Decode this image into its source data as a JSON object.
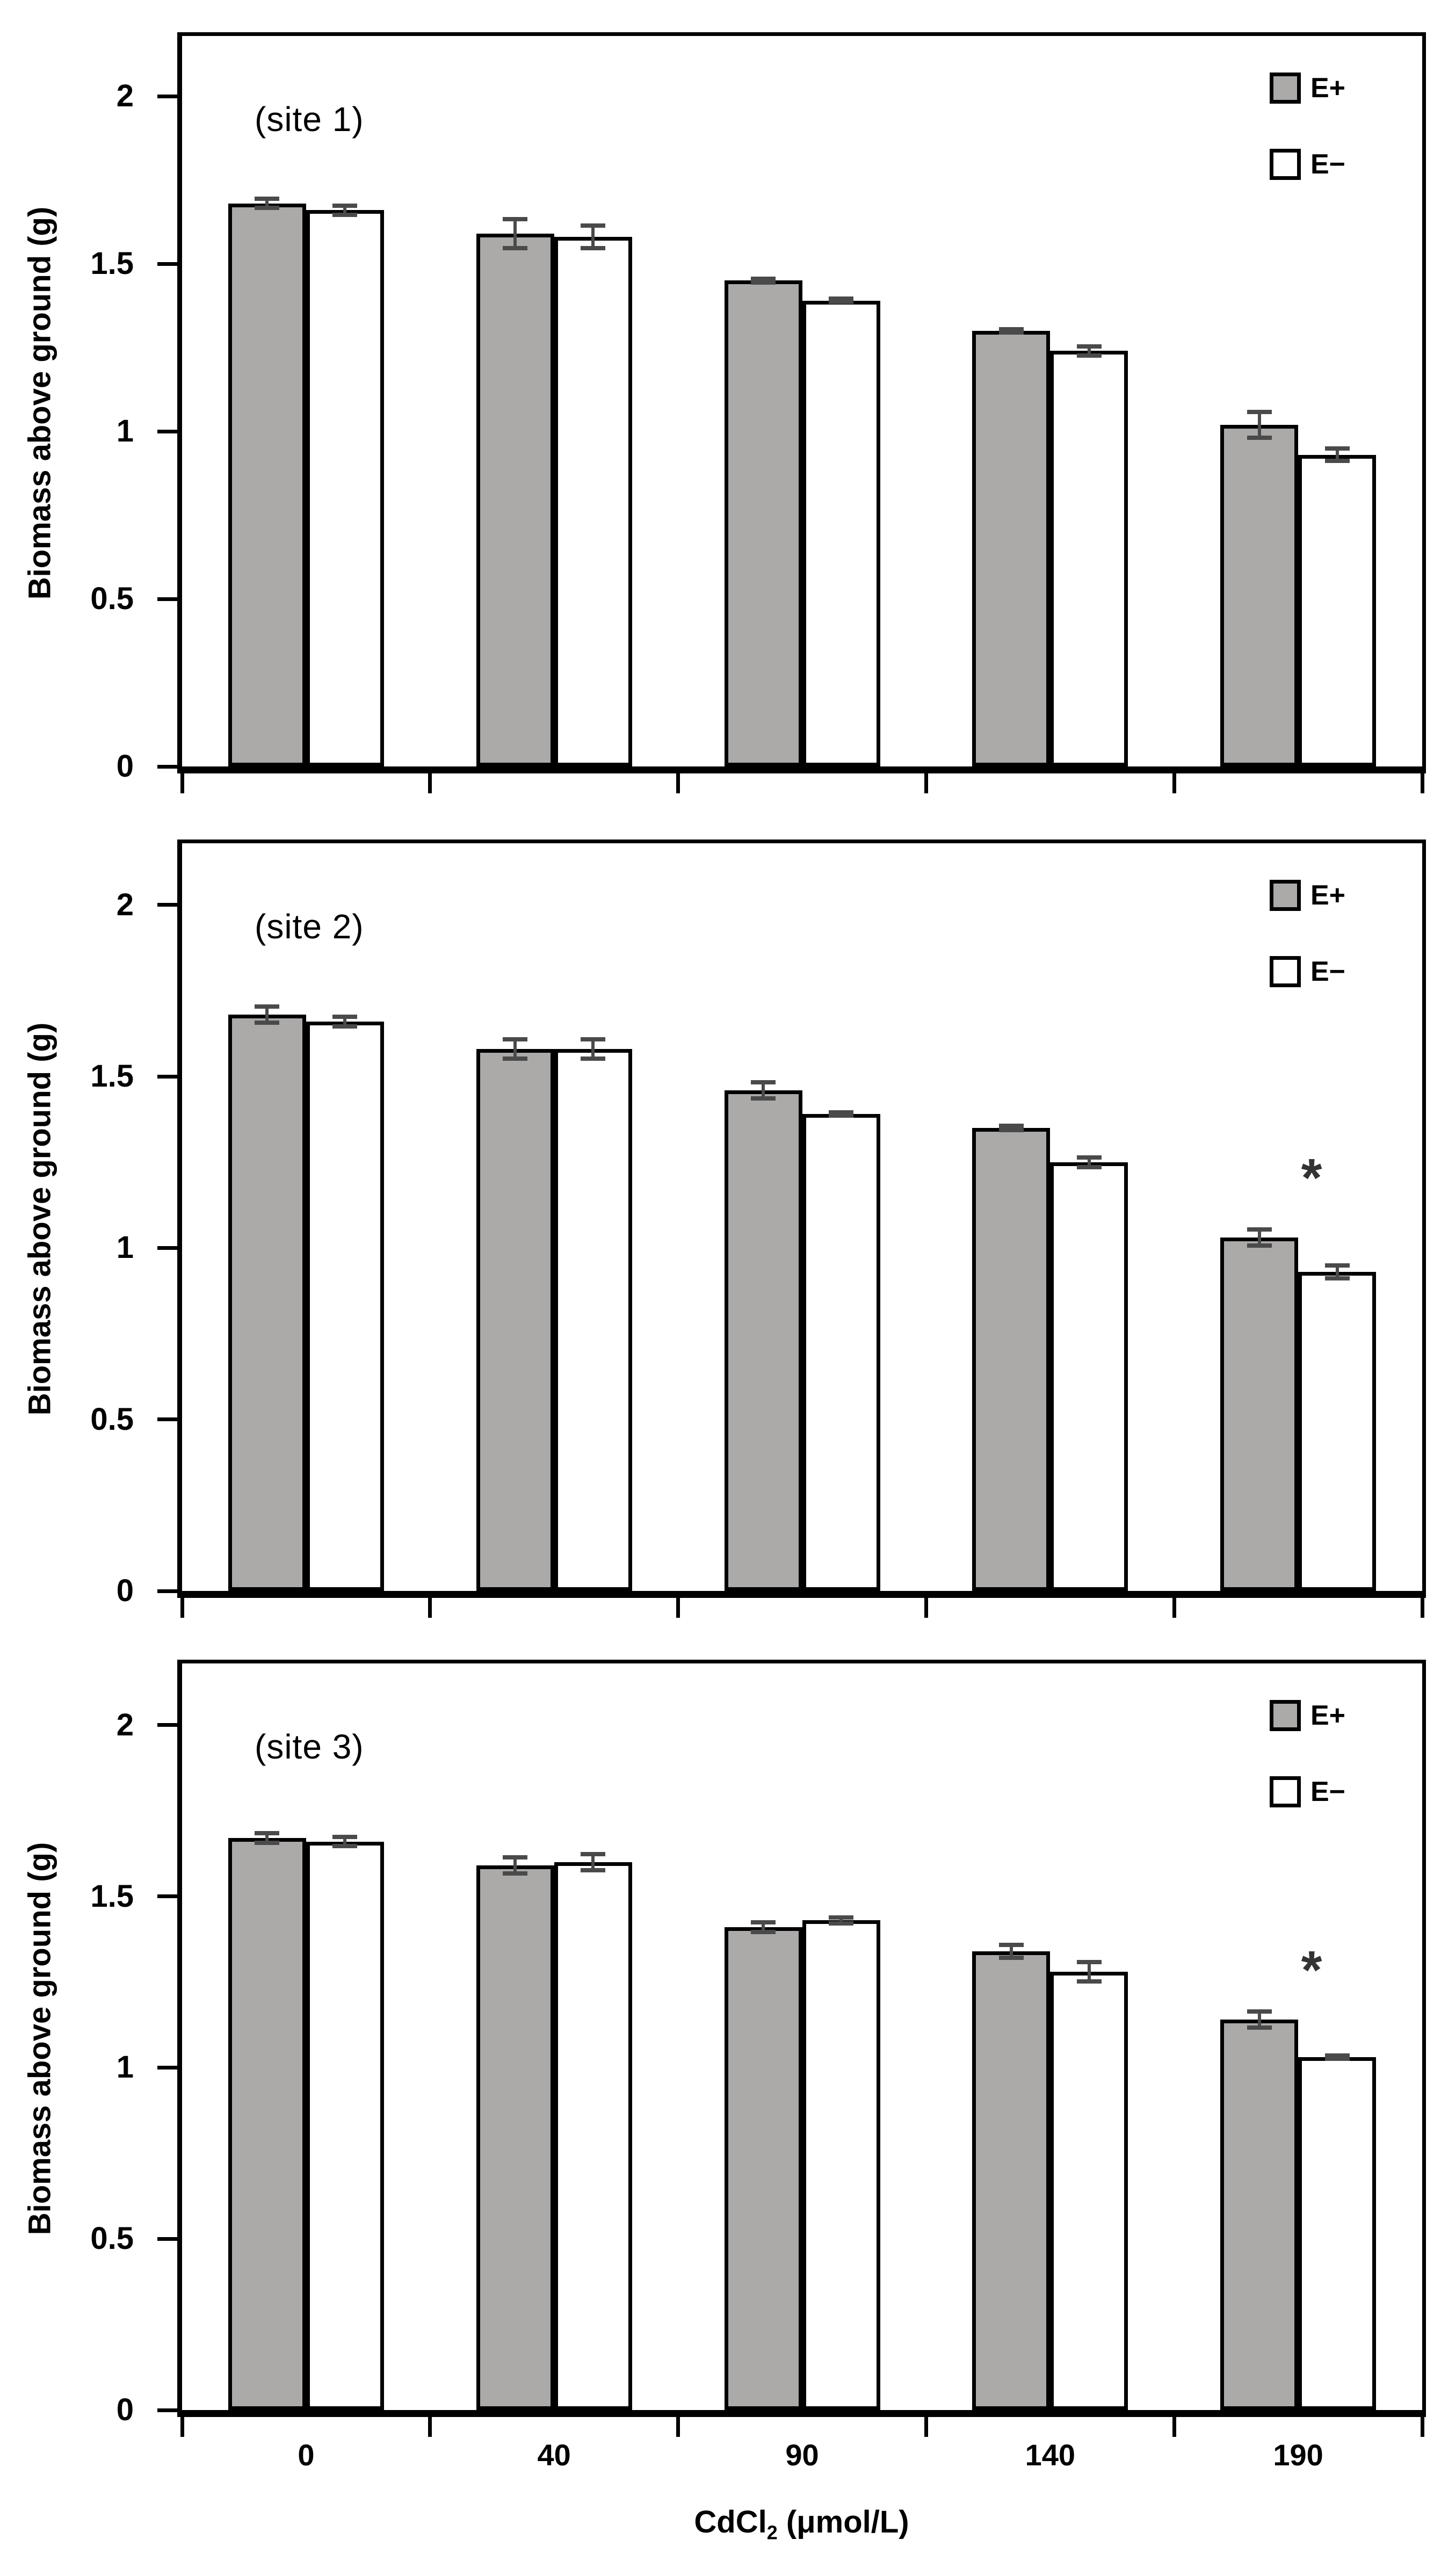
{
  "figure": {
    "background": "#ffffff",
    "ylabel": "Biomass above ground (g)",
    "xlabel_main": "CdCl",
    "xlabel_sub": "2",
    "xlabel_rest": " (μmol/L)",
    "colors": {
      "e_plus_fill": "#aca9a9",
      "e_minus_fill": "#ffffff",
      "bar_edge": "#000000",
      "error_bar": "#4a4a4a",
      "significance": "#333333"
    }
  },
  "chart_data": [
    {
      "type": "bar",
      "panel_label": "(site 1)",
      "categories": [
        "0",
        "40",
        "90",
        "140",
        "190"
      ],
      "xlabel": "CdCl2 (μmol/L)",
      "ylabel": "Biomass above ground (g)",
      "ylim": [
        0,
        2.18
      ],
      "yticks": [
        "2",
        "1.5",
        "1",
        "0.5",
        "0"
      ],
      "legend_position": "top-right",
      "grid": false,
      "series": [
        {
          "name": "E+",
          "fill": "#aca9a9",
          "values": [
            1.68,
            1.59,
            1.45,
            1.3,
            1.02
          ],
          "errors": [
            0.02,
            0.05,
            0.012,
            0.012,
            0.045
          ]
        },
        {
          "name": "E−",
          "fill": "#ffffff",
          "values": [
            1.66,
            1.58,
            1.39,
            1.24,
            0.93
          ],
          "errors": [
            0.02,
            0.04,
            0.01,
            0.02,
            0.025
          ]
        }
      ],
      "significance": []
    },
    {
      "type": "bar",
      "panel_label": "(site 2)",
      "categories": [
        "0",
        "40",
        "90",
        "140",
        "190"
      ],
      "xlabel": "CdCl2 (μmol/L)",
      "ylabel": "Biomass above ground (g)",
      "ylim": [
        0,
        2.18
      ],
      "yticks": [
        "2",
        "1.5",
        "1",
        "0.5",
        "0"
      ],
      "legend_position": "top-right",
      "grid": false,
      "series": [
        {
          "name": "E+",
          "fill": "#aca9a9",
          "values": [
            1.68,
            1.58,
            1.46,
            1.35,
            1.03
          ],
          "errors": [
            0.03,
            0.035,
            0.03,
            0.012,
            0.03
          ]
        },
        {
          "name": "E−",
          "fill": "#ffffff",
          "values": [
            1.66,
            1.58,
            1.39,
            1.25,
            0.93
          ],
          "errors": [
            0.02,
            0.035,
            0.01,
            0.02,
            0.025
          ]
        }
      ],
      "significance": [
        {
          "category": "190",
          "symbol": "*",
          "y": 1.22
        }
      ]
    },
    {
      "type": "bar",
      "panel_label": "(site 3)",
      "categories": [
        "0",
        "40",
        "90",
        "140",
        "190"
      ],
      "xlabel": "CdCl2 (μmol/L)",
      "ylabel": "Biomass above ground (g)",
      "ylim": [
        0,
        2.18
      ],
      "yticks": [
        "2",
        "1.5",
        "1",
        "0.5",
        "0"
      ],
      "legend_position": "top-right",
      "grid": false,
      "series": [
        {
          "name": "E+",
          "fill": "#aca9a9",
          "values": [
            1.67,
            1.59,
            1.41,
            1.34,
            1.14
          ],
          "errors": [
            0.02,
            0.03,
            0.02,
            0.025,
            0.03
          ]
        },
        {
          "name": "E−",
          "fill": "#ffffff",
          "values": [
            1.66,
            1.6,
            1.43,
            1.28,
            1.03
          ],
          "errors": [
            0.02,
            0.03,
            0.015,
            0.035,
            0.01
          ]
        }
      ],
      "significance": [
        {
          "category": "190",
          "symbol": "*",
          "y": 1.3
        }
      ]
    }
  ]
}
